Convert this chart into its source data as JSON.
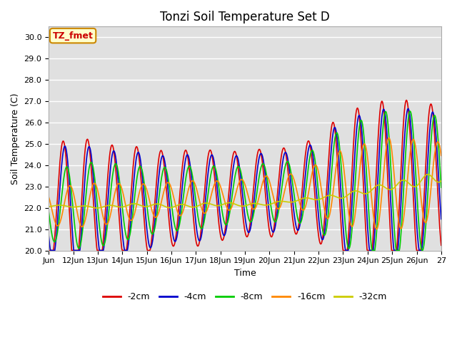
{
  "title": "Tonzi Soil Temperature Set D",
  "xlabel": "Time",
  "ylabel": "Soil Temperature (C)",
  "ylim": [
    20.0,
    30.5
  ],
  "yticks": [
    20.0,
    21.0,
    22.0,
    23.0,
    24.0,
    25.0,
    26.0,
    27.0,
    28.0,
    29.0,
    30.0
  ],
  "xtick_positions": [
    11,
    12,
    13,
    14,
    15,
    16,
    17,
    18,
    19,
    20,
    21,
    22,
    23,
    24,
    25,
    26,
    27
  ],
  "xtick_labels": [
    "Jun",
    "12Jun",
    "13Jun",
    "14Jun",
    "15Jun",
    "16Jun",
    "17Jun",
    "18Jun",
    "19Jun",
    "20Jun",
    "21Jun",
    "22Jun",
    "23Jun",
    "24Jun",
    "25Jun",
    "26Jun",
    "27"
  ],
  "series": [
    {
      "label": "-2cm",
      "color": "#dd0000",
      "lw": 1.2
    },
    {
      "label": "-4cm",
      "color": "#0000cc",
      "lw": 1.2
    },
    {
      "label": "-8cm",
      "color": "#00cc00",
      "lw": 1.2
    },
    {
      "label": "-16cm",
      "color": "#ff8800",
      "lw": 1.2
    },
    {
      "label": "-32cm",
      "color": "#cccc00",
      "lw": 1.2
    }
  ],
  "annotation_text": "TZ_fmet",
  "annotation_color": "#cc0000",
  "annotation_bg": "#ffffcc",
  "annotation_border": "#cc8800",
  "plot_bg_color": "#e0e0e0",
  "fig_bg_color": "#ffffff",
  "title_fontsize": 12,
  "axis_fontsize": 9,
  "tick_fontsize": 8,
  "legend_fontsize": 9
}
